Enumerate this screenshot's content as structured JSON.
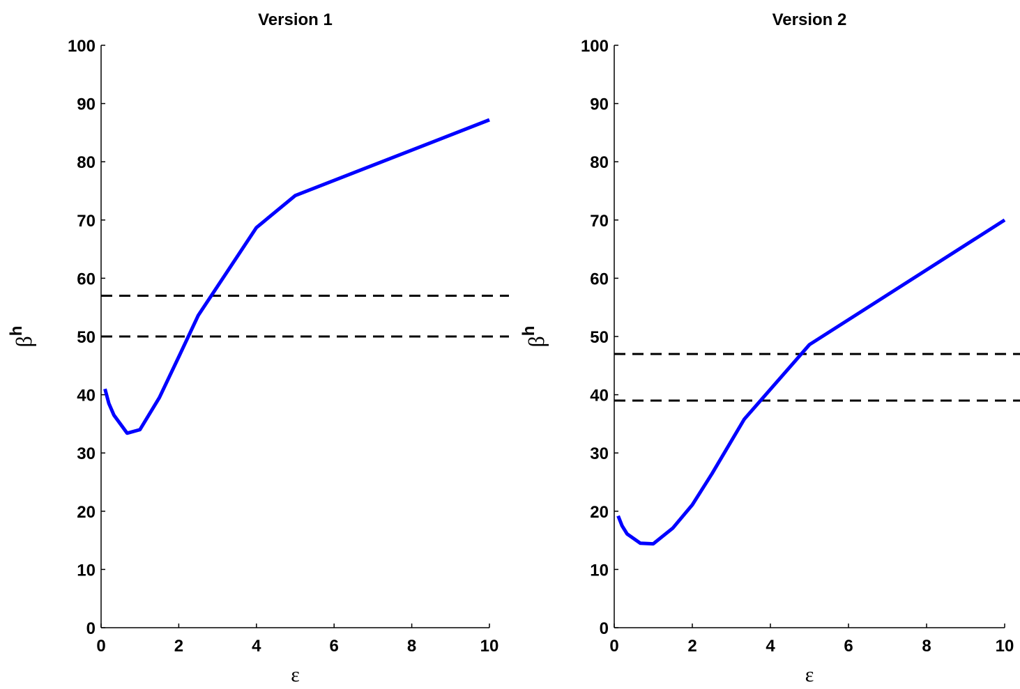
{
  "chart_data": [
    {
      "type": "line",
      "title": "Version 1",
      "xlabel": "ε",
      "ylabel": {
        "base": "β",
        "superscript": "h"
      },
      "x": [
        0.1,
        0.2,
        0.33,
        0.67,
        1,
        1.5,
        2,
        2.5,
        4,
        5,
        10
      ],
      "series": [
        {
          "color": "#0000ff",
          "values": [
            41,
            38.5,
            36.5,
            33.4,
            34,
            39.5,
            46.5,
            53.6,
            68.7,
            74.2,
            87.2
          ]
        }
      ],
      "hlines": [
        57,
        50
      ],
      "hline_color": "#000000",
      "xlim": [
        0,
        10
      ],
      "ylim": [
        0,
        100
      ],
      "xticks": [
        0,
        2,
        4,
        6,
        8,
        10
      ],
      "yticks": [
        0,
        10,
        20,
        30,
        40,
        50,
        60,
        70,
        80,
        90,
        100
      ]
    },
    {
      "type": "line",
      "title": "Version 2",
      "xlabel": "ε",
      "ylabel": {
        "base": "β",
        "superscript": "h"
      },
      "x": [
        0.1,
        0.2,
        0.33,
        0.67,
        1,
        1.5,
        2,
        2.5,
        3.33,
        5,
        10
      ],
      "series": [
        {
          "color": "#0000ff",
          "values": [
            19.2,
            17.5,
            16.1,
            14.5,
            14.4,
            17.1,
            21.1,
            26.4,
            35.8,
            48.6,
            70
          ]
        }
      ],
      "hlines": [
        47,
        39
      ],
      "hline_color": "#000000",
      "xlim": [
        0,
        10
      ],
      "ylim": [
        0,
        100
      ],
      "xticks": [
        0,
        2,
        4,
        6,
        8,
        10
      ],
      "yticks": [
        0,
        10,
        20,
        30,
        40,
        50,
        60,
        70,
        80,
        90,
        100
      ]
    }
  ]
}
